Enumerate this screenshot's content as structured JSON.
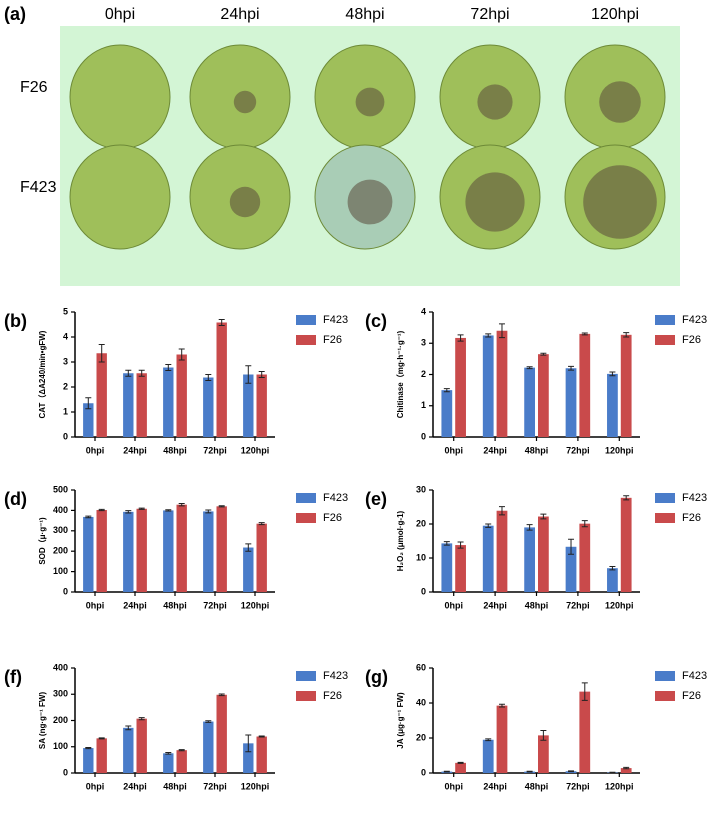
{
  "photo_panel": {
    "label": "(a)",
    "columns": [
      "0hpi",
      "24hpi",
      "48hpi",
      "72hpi",
      "120hpi"
    ],
    "rows": [
      "F26",
      "F423"
    ]
  },
  "chart_data": [
    {
      "type": "bar",
      "label": "(b)",
      "y_label": "CAT（ΔA240/min•gFW)",
      "categories": [
        "0hpi",
        "24hpi",
        "48hpi",
        "72hpi",
        "120hpi"
      ],
      "ylim": [
        0,
        5
      ],
      "yticks": [
        0,
        1,
        2,
        3,
        4,
        5
      ],
      "series": [
        {
          "name": "F423",
          "color": "#4a7cc9",
          "values": [
            1.35,
            2.55,
            2.78,
            2.38,
            2.5
          ],
          "errors": [
            0.22,
            0.12,
            0.12,
            0.12,
            0.35
          ]
        },
        {
          "name": "F26",
          "color": "#c94a4b",
          "values": [
            3.35,
            2.55,
            3.3,
            4.58,
            2.5
          ],
          "errors": [
            0.35,
            0.12,
            0.22,
            0.12,
            0.12
          ]
        }
      ]
    },
    {
      "type": "bar",
      "label": "(c)",
      "y_label": "Chitinase（mg·h⁻¹·g⁻¹)",
      "categories": [
        "0hpi",
        "24hpi",
        "48hpi",
        "72hpi",
        "120hpi"
      ],
      "ylim": [
        0,
        4
      ],
      "yticks": [
        0,
        1,
        2,
        3,
        4
      ],
      "series": [
        {
          "name": "F423",
          "color": "#4a7cc9",
          "values": [
            1.5,
            3.25,
            2.22,
            2.2,
            2.02
          ],
          "errors": [
            0.05,
            0.05,
            0.03,
            0.06,
            0.06
          ]
        },
        {
          "name": "F26",
          "color": "#c94a4b",
          "values": [
            3.17,
            3.4,
            2.65,
            3.3,
            3.27
          ],
          "errors": [
            0.1,
            0.22,
            0.03,
            0.03,
            0.07
          ]
        }
      ]
    },
    {
      "type": "bar",
      "label": "(d)",
      "y_label": "SOD（μ·g⁻¹)",
      "categories": [
        "0hpi",
        "24hpi",
        "48hpi",
        "72hpi",
        "120hpi"
      ],
      "ylim": [
        0,
        500
      ],
      "yticks": [
        0,
        100,
        200,
        300,
        400,
        500
      ],
      "series": [
        {
          "name": "F423",
          "color": "#4a7cc9",
          "values": [
            368,
            393,
            400,
            395,
            218
          ],
          "errors": [
            4,
            6,
            3,
            7,
            18
          ]
        },
        {
          "name": "F26",
          "color": "#c94a4b",
          "values": [
            402,
            408,
            428,
            420,
            335
          ],
          "errors": [
            3,
            3,
            6,
            3,
            5
          ]
        }
      ]
    },
    {
      "type": "bar",
      "label": "(e)",
      "y_label": "H₂O₂ (μmol·g-1)",
      "categories": [
        "0hpi",
        "24hpi",
        "48hpi",
        "72hpi",
        "120hpi"
      ],
      "ylim": [
        0,
        30
      ],
      "yticks": [
        0,
        10,
        20,
        30
      ],
      "series": [
        {
          "name": "F423",
          "color": "#4a7cc9",
          "values": [
            14.3,
            19.5,
            19,
            13.3,
            7
          ],
          "errors": [
            0.5,
            0.5,
            0.8,
            2.2,
            0.5
          ]
        },
        {
          "name": "F26",
          "color": "#c94a4b",
          "values": [
            13.8,
            23.9,
            22.2,
            20.1,
            27.7
          ],
          "errors": [
            0.9,
            1.2,
            0.7,
            0.9,
            0.6
          ]
        }
      ]
    },
    {
      "type": "bar",
      "label": "(f)",
      "y_label": "SA (ng·g⁻¹ FW)",
      "categories": [
        "0hpi",
        "24hpi",
        "48hpi",
        "72hpi",
        "120hpi"
      ],
      "ylim": [
        0,
        400
      ],
      "yticks": [
        0,
        100,
        200,
        300,
        400
      ],
      "series": [
        {
          "name": "F423",
          "color": "#4a7cc9",
          "values": [
            95,
            172,
            75,
            196,
            113
          ],
          "errors": [
            2,
            7,
            3,
            3,
            32
          ]
        },
        {
          "name": "F26",
          "color": "#c94a4b",
          "values": [
            132,
            207,
            87,
            298,
            139
          ],
          "errors": [
            2,
            4,
            2,
            3,
            2
          ]
        }
      ]
    },
    {
      "type": "bar",
      "label": "(g)",
      "y_label": "JA (μg·g⁻¹ FW)",
      "categories": [
        "0hpi",
        "24hpi",
        "48hpi",
        "72hpi",
        "120hpi"
      ],
      "ylim": [
        0,
        60
      ],
      "yticks": [
        0,
        20,
        40,
        60
      ],
      "series": [
        {
          "name": "F423",
          "color": "#4a7cc9",
          "values": [
            0.8,
            19,
            0.8,
            1,
            0.3
          ],
          "errors": [
            0.2,
            0.5,
            0.2,
            0.2,
            0.1
          ]
        },
        {
          "name": "F26",
          "color": "#c94a4b",
          "values": [
            5.8,
            38.5,
            21.5,
            46.5,
            2.8
          ],
          "errors": [
            0.3,
            0.8,
            2.8,
            5,
            0.4
          ]
        }
      ]
    }
  ]
}
